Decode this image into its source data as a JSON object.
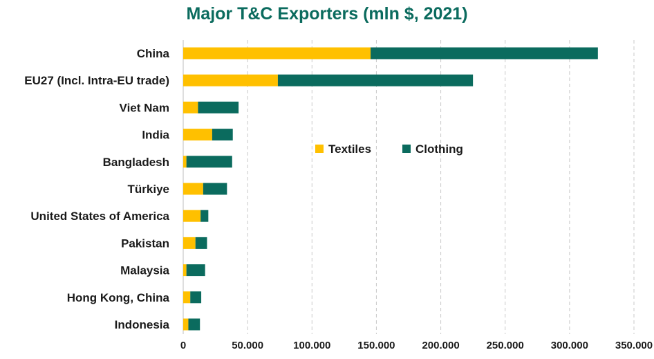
{
  "chart_data": {
    "type": "bar",
    "orientation": "horizontal",
    "stacked": true,
    "title": "Major T&C Exporters (mln $, 2021)",
    "categories": [
      "China",
      "EU27 (Incl. Intra-EU trade)",
      "Viet Nam",
      "India",
      "Bangladesh",
      "Türkiye",
      "United States of America",
      "Pakistan",
      "Malaysia",
      "Hong Kong, China",
      "Indonesia"
    ],
    "series": [
      {
        "name": "Textiles",
        "color": "#FFC000",
        "values": [
          145500,
          73500,
          11500,
          22500,
          2500,
          15500,
          13500,
          9500,
          2500,
          5500,
          4000
        ]
      },
      {
        "name": "Clothing",
        "color": "#0B6B5E",
        "values": [
          176500,
          151500,
          31500,
          16000,
          35500,
          18500,
          6000,
          9000,
          14500,
          8500,
          9000
        ]
      }
    ],
    "xlim": [
      0,
      350000
    ],
    "xticks": [
      0,
      50000,
      100000,
      150000,
      200000,
      250000,
      300000,
      350000
    ],
    "xtick_labels": [
      "0",
      "50.000",
      "100.000",
      "150.000",
      "200.000",
      "250.000",
      "300.000",
      "350.000"
    ],
    "grid": "vertical-dashed",
    "legend_position": "center-right"
  }
}
